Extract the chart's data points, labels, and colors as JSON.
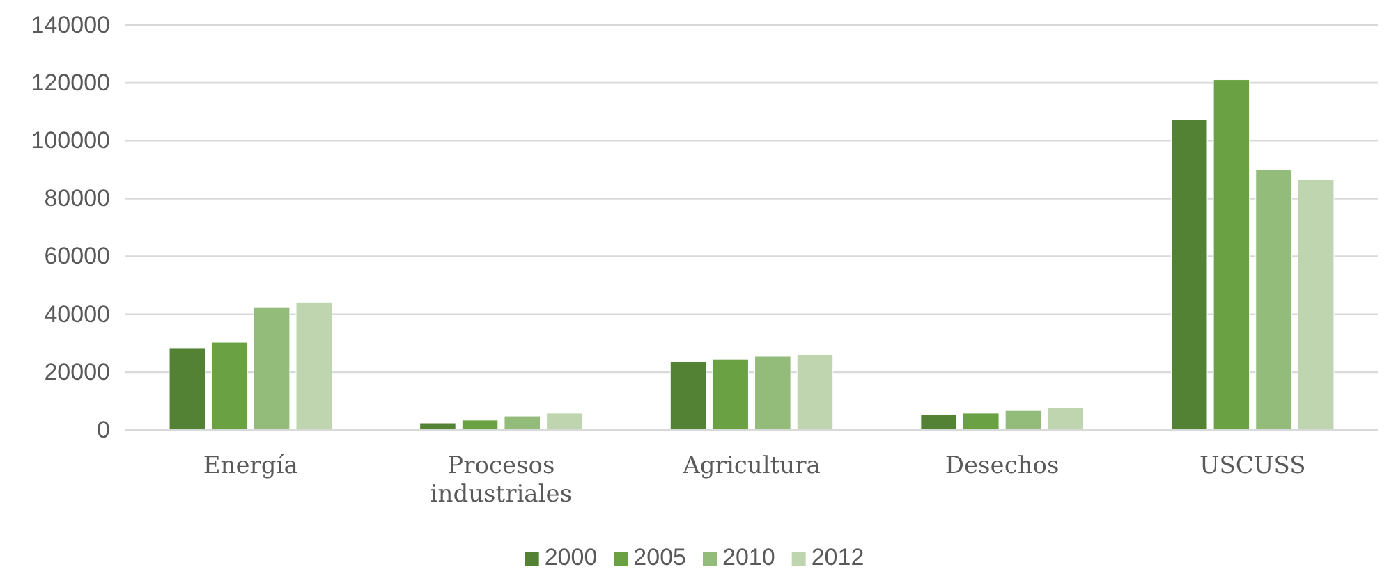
{
  "chart_data": {
    "type": "bar",
    "categories": [
      "Energía",
      "Procesos industriales",
      "Agricultura",
      "Desechos",
      "USCUSS"
    ],
    "series": [
      {
        "name": "2000",
        "color": "#548235",
        "values": [
          28400,
          2400,
          23600,
          5300,
          107200
        ]
      },
      {
        "name": "2005",
        "color": "#6aa142",
        "values": [
          30300,
          3400,
          24500,
          5800,
          121100
        ]
      },
      {
        "name": "2010",
        "color": "#93bb7a",
        "values": [
          42300,
          4800,
          25500,
          6700,
          89900
        ]
      },
      {
        "name": "2012",
        "color": "#bed5b0",
        "values": [
          44200,
          5800,
          26000,
          7700,
          86500
        ]
      }
    ],
    "ylim": [
      0,
      140000
    ],
    "yticks": [
      0,
      20000,
      40000,
      60000,
      80000,
      100000,
      120000,
      140000
    ],
    "grid": "y",
    "legend": "bottom"
  }
}
